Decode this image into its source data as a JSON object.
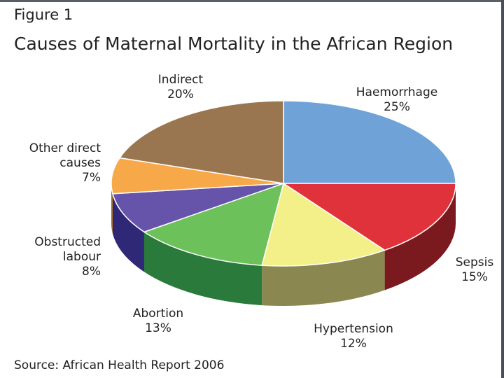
{
  "figure": {
    "label": "Figure 1",
    "title": "Causes of Maternal Mortality in the African Region",
    "source": "Source:  African Health Report 2006"
  },
  "chart_data": {
    "type": "pie",
    "title": "Causes of Maternal Mortality in the African Region",
    "slices": [
      {
        "name": "Haemorrhage",
        "name_lines": [
          "Haemorrhage"
        ],
        "value": 25,
        "value_label": "25%",
        "top_color": "#6fa3d8",
        "side_color": "#3f6ea6"
      },
      {
        "name": "Sepsis",
        "name_lines": [
          "Sepsis"
        ],
        "value": 15,
        "value_label": "15%",
        "top_color": "#e0323a",
        "side_color": "#7a1a1f"
      },
      {
        "name": "Hypertension",
        "name_lines": [
          "Hypertension"
        ],
        "value": 12,
        "value_label": "12%",
        "top_color": "#f3f08a",
        "side_color": "#8a8750"
      },
      {
        "name": "Abortion",
        "name_lines": [
          "Abortion"
        ],
        "value": 13,
        "value_label": "13%",
        "top_color": "#6cc15a",
        "side_color": "#2a7a3c"
      },
      {
        "name": "Obstructed labour",
        "name_lines": [
          "Obstructed",
          "labour"
        ],
        "value": 8,
        "value_label": "8%",
        "top_color": "#6654aa",
        "side_color": "#2f2877"
      },
      {
        "name": "Other direct causes",
        "name_lines": [
          "Other direct",
          "causes"
        ],
        "value": 7,
        "value_label": "7%",
        "top_color": "#f7a94a",
        "side_color": "#a56a22"
      },
      {
        "name": "Indirect",
        "name_lines": [
          "Indirect"
        ],
        "value": 20,
        "value_label": "20%",
        "top_color": "#9a7650",
        "side_color": "#6a4f33"
      }
    ]
  }
}
